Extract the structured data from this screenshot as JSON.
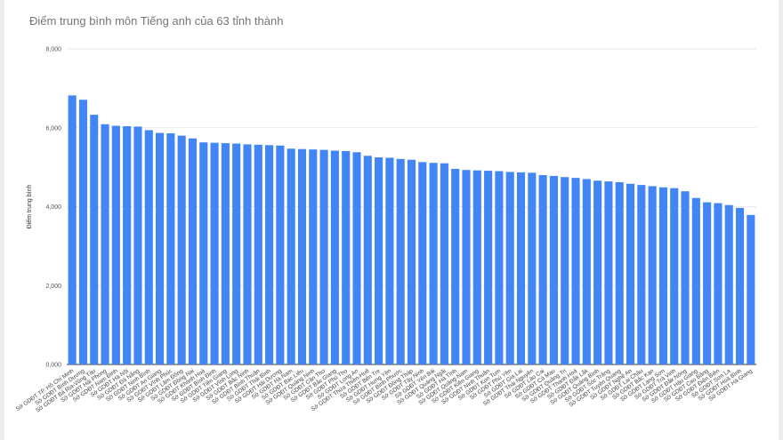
{
  "chart_data": {
    "type": "bar",
    "title": "Điểm trung bình môn Tiếng anh của 63 tỉnh thành",
    "xlabel": "",
    "ylabel": "Điểm trung bình",
    "ylim": [
      0,
      8
    ],
    "yticks": [
      "0,000",
      "2,000",
      "4,000",
      "6,000",
      "8,000"
    ],
    "grid": true,
    "bar_color": "#4285f4",
    "categories": [
      "Sở GDĐT TP. Hồ Chí Minh",
      "Sở GDĐT Bình Dương",
      "Sở GDĐT Bà Rịa-Vũng Tàu",
      "Sở GDĐT Hải Phòng",
      "Sở GDĐT Nam Định",
      "Sở GDĐT Hà Nội",
      "Sở GDĐT Đà Nẵng",
      "Sở GDĐT Ninh Bình",
      "Sở GDĐT An Giang",
      "Sở GDĐT Vĩnh Phúc",
      "Sở GDĐT Lâm Đồng",
      "Sở GDĐT Đồng Nai",
      "Sở GDĐT Khánh Hoà",
      "Sở GDĐT Bình Định",
      "Sở GDĐT Tiền Giang",
      "Sở GDĐT Vĩnh Long",
      "Sở GDĐT Bắc Ninh",
      "Sở GDĐT Bình Thuận",
      "Sở GDĐT Thái Bình",
      "Sở GDĐT Hải Dương",
      "Sở GDĐT Hà Nam",
      "Sở GDĐT Bạc Liêu",
      "Sở GDĐT Quảng Ninh",
      "Sở GDĐT Cần Thơ",
      "Sở GDĐT Bắc Giang",
      "Sở GDĐT Phú Thọ",
      "Sở GDĐT Long An",
      "Sở GDĐT Thừa Thiên-Huế",
      "Sở GDĐT Bến Tre",
      "Sở GDĐT Hưng Yên",
      "Sở GDĐT Bình Phước",
      "Sở GDĐT Đồng Tháp",
      "Sở GDĐT Tây Ninh",
      "Sở GDĐT Yên Bái",
      "Sở GDĐT Quảng Ngãi",
      "Sở GDĐT Hà Tĩnh",
      "Sở GDĐT Quảng Nam",
      "Sở GDĐT Kiên Giang",
      "Sở GDĐT Ninh Thuận",
      "Sở GDĐT Kon Tum",
      "Sở GDĐT Phú Yên",
      "Sở GDĐT Gia Lai",
      "Sở GDĐT Thái Nguyên",
      "Sở GDĐT Lào Cai",
      "Sở GDĐT Cà Mau",
      "Sở GDĐT Quảng Trị",
      "Sở GDĐT Thanh Hoá",
      "Sở GDĐT Đắk Lắk",
      "Sở GDĐT Quảng Bình",
      "Sở GDĐT Sóc Trăng",
      "Sở GDĐT Tuyên Quang",
      "Sở GDĐT Nghệ An",
      "Sở GDĐT Lai Châu",
      "Sở GDĐT Bắc Kạn",
      "Sở GDĐT Lạng Sơn",
      "Sở GDĐT Trà Vinh",
      "Sở GDĐT Đắk Nông",
      "Sở GDĐT Hậu Giang",
      "Sở GDĐT Cao Bằng",
      "Sở GDĐT Điện Biên",
      "Sở GDĐT Sơn La",
      "Sở GDĐT Hoà Bình",
      "Sở GDĐT Hà Giang"
    ],
    "values": [
      6.82,
      6.71,
      6.33,
      6.09,
      6.05,
      6.04,
      6.03,
      5.94,
      5.87,
      5.86,
      5.8,
      5.73,
      5.63,
      5.62,
      5.61,
      5.6,
      5.58,
      5.57,
      5.56,
      5.55,
      5.47,
      5.46,
      5.45,
      5.44,
      5.42,
      5.41,
      5.38,
      5.29,
      5.25,
      5.24,
      5.21,
      5.19,
      5.13,
      5.11,
      5.1,
      4.96,
      4.93,
      4.92,
      4.91,
      4.9,
      4.88,
      4.87,
      4.86,
      4.8,
      4.78,
      4.75,
      4.73,
      4.7,
      4.66,
      4.64,
      4.62,
      4.58,
      4.55,
      4.52,
      4.49,
      4.47,
      4.39,
      4.22,
      4.11,
      4.09,
      4.04,
      3.97,
      3.79
    ]
  }
}
